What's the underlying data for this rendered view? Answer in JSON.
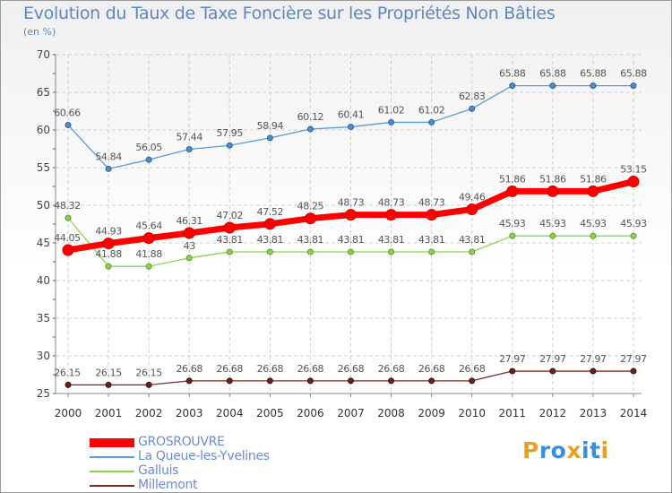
{
  "title": "Evolution du Taux de Taxe Foncière sur les Propriétés Non Bâties",
  "subtitle": "(en %)",
  "logo": {
    "letters": [
      "P",
      "r",
      "o",
      "x",
      "i",
      "t",
      "i"
    ],
    "colors": [
      "#e8a020",
      "#3a8fd8",
      "#3a8fd8",
      "#e8a020",
      "#3a8fd8",
      "#3a8fd8",
      "#e8a020"
    ]
  },
  "chart_data": {
    "type": "line",
    "x": [
      2000,
      2001,
      2002,
      2003,
      2004,
      2005,
      2006,
      2007,
      2008,
      2009,
      2010,
      2011,
      2012,
      2013,
      2014
    ],
    "ylim": [
      25,
      70
    ],
    "yticks": [
      25,
      30,
      35,
      40,
      45,
      50,
      55,
      60,
      65,
      70
    ],
    "grid": true,
    "legend_position": "bottom-left",
    "series": [
      {
        "name": "GROSROUVRE",
        "color": "#ff0000",
        "values": [
          44.05,
          44.93,
          45.64,
          46.31,
          47.02,
          47.52,
          48.25,
          48.73,
          48.73,
          48.73,
          49.46,
          51.86,
          51.86,
          51.86,
          53.15
        ],
        "labels": [
          "44.05",
          "44.93",
          "45.64",
          "46.31",
          "47.02",
          "47.52",
          "48.25",
          "48.73",
          "48.73",
          "48.73",
          "49.46",
          "51.86",
          "51.86",
          "51.86",
          "53.15"
        ]
      },
      {
        "name": "La Queue-les-Yvelines",
        "color": "#5b9bd5",
        "values": [
          60.66,
          54.84,
          56.05,
          57.44,
          57.95,
          58.94,
          60.12,
          60.41,
          61.02,
          61.02,
          62.83,
          65.88,
          65.88,
          65.88,
          65.88
        ],
        "labels": [
          "60.66",
          "54.84",
          "56.05",
          "57.44",
          "57.95",
          "58.94",
          "60.12",
          "60.41",
          "61.02",
          "61.02",
          "62.83",
          "65.88",
          "65.88",
          "65.88",
          "65.88"
        ]
      },
      {
        "name": "Galluis",
        "color": "#8fd24d",
        "values": [
          48.32,
          41.88,
          41.88,
          43,
          43.81,
          43.81,
          43.81,
          43.81,
          43.81,
          43.81,
          43.81,
          45.93,
          45.93,
          45.93,
          45.93
        ],
        "labels": [
          "48.32",
          "41.88",
          "41.88",
          "43",
          "43.81",
          "43.81",
          "43.81",
          "43.81",
          "43.81",
          "43.81",
          "43.81",
          "45.93",
          "45.93",
          "45.93",
          "45.93"
        ]
      },
      {
        "name": "Millemont",
        "color": "#7a2a2a",
        "values": [
          26.15,
          26.15,
          26.15,
          26.68,
          26.68,
          26.68,
          26.68,
          26.68,
          26.68,
          26.68,
          26.68,
          27.97,
          27.97,
          27.97,
          27.97
        ],
        "labels": [
          "26.15",
          "26.15",
          "26.15",
          "26.68",
          "26.68",
          "26.68",
          "26.68",
          "26.68",
          "26.68",
          "26.68",
          "26.68",
          "27.97",
          "27.97",
          "27.97",
          "27.97"
        ]
      }
    ]
  }
}
